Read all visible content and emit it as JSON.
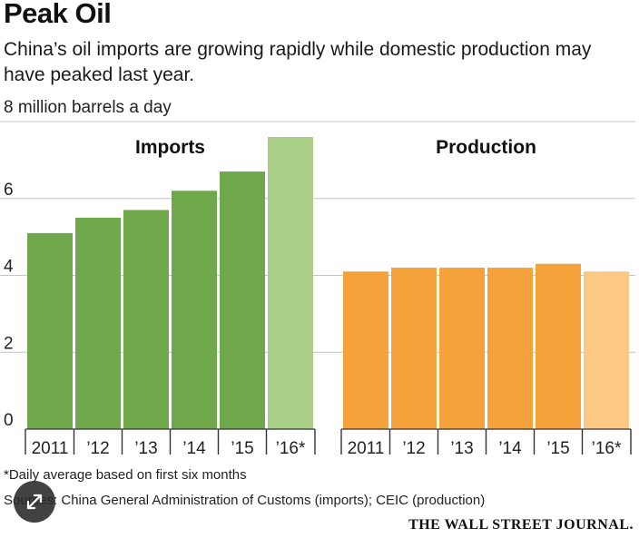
{
  "header": {
    "title": "Peak Oil",
    "subtitle": "China’s oil imports are growing rapidly while domestic production may have peaked last year.",
    "unit": "8 million barrels a day"
  },
  "chart_data": {
    "type": "bar",
    "ylim": [
      0,
      8
    ],
    "yticks": [
      "0",
      "2",
      "4",
      "6"
    ],
    "grid": true,
    "categories": [
      "2011",
      "’12",
      "’13",
      "’14",
      "’15",
      "’16*"
    ],
    "series": [
      {
        "name": "Imports",
        "values": [
          5.1,
          5.5,
          5.7,
          6.2,
          6.7,
          7.6
        ],
        "color": "#6ea84a",
        "last_color": "#a9cf86"
      },
      {
        "name": "Production",
        "values": [
          4.1,
          4.2,
          4.2,
          4.2,
          4.3,
          4.1
        ],
        "color": "#f5a23a",
        "last_color": "#fbc983"
      }
    ]
  },
  "footer": {
    "footnote": "*Daily average based on first six months",
    "sources": "Sources: China General Administration of Customs (imports); CEIC (production)",
    "masthead": "THE WALL STREET JOURNAL."
  },
  "icons": {
    "expand": "expand-arrows-icon"
  }
}
